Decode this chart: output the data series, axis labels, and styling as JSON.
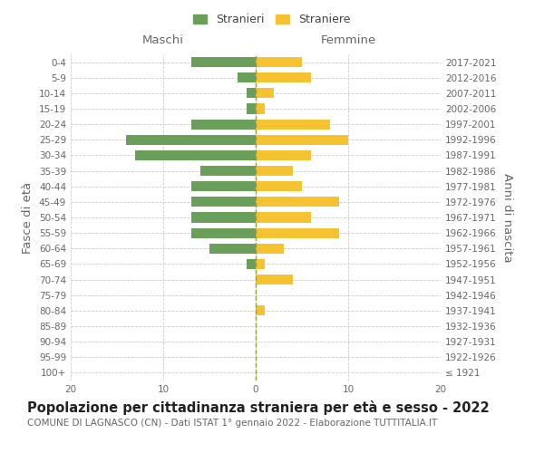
{
  "age_groups": [
    "100+",
    "95-99",
    "90-94",
    "85-89",
    "80-84",
    "75-79",
    "70-74",
    "65-69",
    "60-64",
    "55-59",
    "50-54",
    "45-49",
    "40-44",
    "35-39",
    "30-34",
    "25-29",
    "20-24",
    "15-19",
    "10-14",
    "5-9",
    "0-4"
  ],
  "birth_years": [
    "≤ 1921",
    "1922-1926",
    "1927-1931",
    "1932-1936",
    "1937-1941",
    "1942-1946",
    "1947-1951",
    "1952-1956",
    "1957-1961",
    "1962-1966",
    "1967-1971",
    "1972-1976",
    "1977-1981",
    "1982-1986",
    "1987-1991",
    "1992-1996",
    "1997-2001",
    "2002-2006",
    "2007-2011",
    "2012-2016",
    "2017-2021"
  ],
  "maschi": [
    0,
    0,
    0,
    0,
    0,
    0,
    0,
    1,
    5,
    7,
    7,
    7,
    7,
    6,
    13,
    14,
    7,
    1,
    1,
    2,
    7
  ],
  "femmine": [
    0,
    0,
    0,
    0,
    1,
    0,
    4,
    1,
    3,
    9,
    6,
    9,
    5,
    4,
    6,
    10,
    8,
    1,
    2,
    6,
    5
  ],
  "maschi_color": "#6a9e5b",
  "femmine_color": "#f5c232",
  "background_color": "#ffffff",
  "grid_color": "#cccccc",
  "title": "Popolazione per cittadinanza straniera per età e sesso - 2022",
  "subtitle": "COMUNE DI LAGNASCO (CN) - Dati ISTAT 1° gennaio 2022 - Elaborazione TUTTITALIA.IT",
  "ylabel_left": "Fasce di età",
  "ylabel_right": "Anni di nascita",
  "xlabel_left": "Maschi",
  "xlabel_top_right": "Femmine",
  "legend_maschi": "Stranieri",
  "legend_femmine": "Straniere",
  "xlim": 20,
  "title_fontsize": 10.5,
  "subtitle_fontsize": 7.5,
  "axis_label_fontsize": 9.5,
  "tick_fontsize": 7.5
}
